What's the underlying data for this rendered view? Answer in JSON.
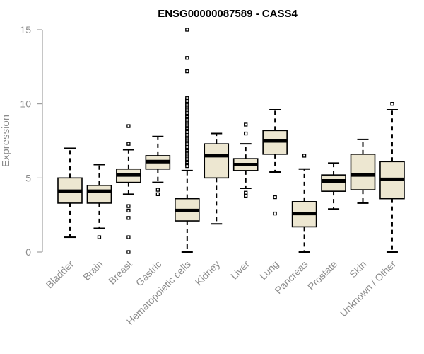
{
  "chart_data": {
    "type": "box",
    "title": "ENSG00000087589 - CASS4",
    "xlabel": "",
    "ylabel": "Expression",
    "ylim": [
      0,
      15
    ],
    "yticks": [
      0,
      5,
      10,
      15
    ],
    "box_fill": "#ede7d1",
    "box_stroke": "#000000",
    "axis_color": "#8c8c8c",
    "categories": [
      "Bladder",
      "Brain",
      "Breast",
      "Gastric",
      "Hematopoietic cells",
      "Kidney",
      "Liver",
      "Lung",
      "Pancreas",
      "Prostate",
      "Skin",
      "Unknown / Other"
    ],
    "boxes": [
      {
        "min": 1.0,
        "q1": 3.3,
        "median": 4.1,
        "q3": 5.0,
        "max": 7.0,
        "outliers": []
      },
      {
        "min": 1.6,
        "q1": 3.3,
        "median": 4.1,
        "q3": 4.5,
        "max": 5.9,
        "outliers": [
          1.0
        ]
      },
      {
        "min": 3.9,
        "q1": 4.7,
        "median": 5.2,
        "q3": 5.6,
        "max": 6.9,
        "outliers": [
          8.5,
          7.3,
          3.1,
          2.8,
          2.3,
          1.0,
          0.0
        ]
      },
      {
        "min": 4.7,
        "q1": 5.6,
        "median": 6.1,
        "q3": 6.5,
        "max": 7.8,
        "outliers": [
          4.2,
          3.9
        ]
      },
      {
        "min": 0.0,
        "q1": 2.1,
        "median": 2.8,
        "q3": 3.6,
        "max": 5.5,
        "outliers": [
          15.0,
          13.1,
          12.2,
          10.4,
          10.3,
          10.2,
          10.1,
          10.0,
          9.9,
          9.8,
          9.7,
          9.6,
          9.5,
          9.4,
          9.3,
          9.2,
          9.1,
          9.0,
          8.9,
          8.8,
          8.7,
          8.6,
          8.5,
          8.4,
          8.3,
          8.2,
          8.1,
          8.0,
          7.9,
          7.8,
          7.7,
          7.6,
          7.5,
          7.4,
          7.3,
          7.2,
          7.1,
          7.0,
          6.9,
          6.8,
          6.7,
          6.6,
          6.5,
          6.4,
          6.3,
          6.2,
          6.1,
          6.0,
          5.9,
          5.8
        ]
      },
      {
        "min": 1.9,
        "q1": 5.0,
        "median": 6.5,
        "q3": 7.3,
        "max": 8.0,
        "outliers": []
      },
      {
        "min": 4.3,
        "q1": 5.5,
        "median": 5.9,
        "q3": 6.3,
        "max": 7.3,
        "outliers": [
          8.6,
          8.0,
          4.0,
          3.8
        ]
      },
      {
        "min": 5.4,
        "q1": 6.6,
        "median": 7.5,
        "q3": 8.2,
        "max": 9.6,
        "outliers": [
          3.7,
          2.6
        ]
      },
      {
        "min": 0.0,
        "q1": 1.7,
        "median": 2.6,
        "q3": 3.4,
        "max": 5.6,
        "outliers": [
          6.5
        ]
      },
      {
        "min": 2.9,
        "q1": 4.1,
        "median": 4.8,
        "q3": 5.2,
        "max": 6.0,
        "outliers": []
      },
      {
        "min": 3.3,
        "q1": 4.2,
        "median": 5.2,
        "q3": 6.6,
        "max": 7.6,
        "outliers": []
      },
      {
        "min": 0.0,
        "q1": 3.6,
        "median": 4.9,
        "q3": 6.1,
        "max": 9.6,
        "outliers": [
          10.0
        ]
      }
    ]
  }
}
